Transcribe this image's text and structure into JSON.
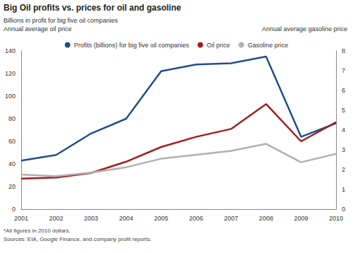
{
  "chart_data": {
    "type": "line",
    "title": "Big Oil profits vs. prices for oil and gasoline",
    "ylabel": [
      "Billions in profit for big five oil companies",
      "Annual average oil price"
    ],
    "y2label": "Annual average gasoline price",
    "notes": [
      "*All figures in 2010 dollars.",
      "Sources: EIA, Google Finance, and company profit reports."
    ],
    "categories": [
      "2001",
      "2002",
      "2003",
      "2004",
      "2005",
      "2006",
      "2007",
      "2008",
      "2009",
      "2010"
    ],
    "series": [
      {
        "name": "Profits (billions) for big five oil companies",
        "color": "#1f4e8c",
        "values": [
          43,
          48,
          67,
          80,
          122,
          128,
          129,
          135,
          64,
          76
        ]
      },
      {
        "name": "Oil price",
        "color": "#a51c1c",
        "values": [
          27,
          28,
          32,
          42,
          55,
          64,
          71,
          93,
          60,
          77
        ]
      },
      {
        "name": "Gasoline price",
        "color": "#b0b0b0",
        "axis": "y2",
        "values": [
          1.75,
          1.67,
          1.85,
          2.12,
          2.55,
          2.75,
          2.95,
          3.3,
          2.37,
          2.8
        ]
      }
    ],
    "ylim": [
      0,
      140
    ],
    "yticks": [
      0,
      20,
      40,
      60,
      80,
      100,
      120,
      140
    ],
    "y2lim": [
      0,
      8
    ],
    "y2ticks": [
      0,
      1,
      2,
      3,
      4,
      5,
      6,
      7,
      8
    ],
    "grid": false,
    "legend": "top"
  }
}
